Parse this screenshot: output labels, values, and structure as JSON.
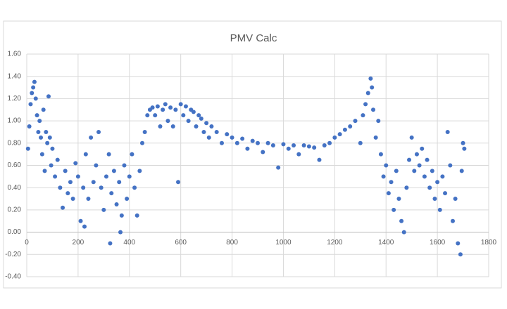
{
  "chart_data": {
    "type": "scatter",
    "title": "PMV Calc",
    "color": "#4472c4",
    "grid": true,
    "xlim": [
      0,
      1800
    ],
    "xticks": [
      0,
      200,
      400,
      600,
      800,
      1000,
      1200,
      1400,
      1600,
      1800
    ],
    "ylim": [
      -0.4,
      1.6
    ],
    "yticks": [
      {
        "value": -0.4,
        "label": "-0.40"
      },
      {
        "value": -0.2,
        "label": "-0.20"
      },
      {
        "value": 0,
        "label": "0.00"
      },
      {
        "value": 0.2,
        "label": "0.20"
      },
      {
        "value": 0.4,
        "label": "0.40"
      },
      {
        "value": 0.6,
        "label": "0.60"
      },
      {
        "value": 0.8,
        "label": "0.80"
      },
      {
        "value": 1.0,
        "label": "1.00"
      },
      {
        "value": 1.2,
        "label": "1.20"
      },
      {
        "value": 1.4,
        "label": "1.40"
      },
      {
        "value": 1.6,
        "label": "1.60"
      }
    ],
    "x": [
      5,
      10,
      15,
      20,
      25,
      30,
      35,
      40,
      45,
      50,
      55,
      60,
      65,
      70,
      75,
      80,
      85,
      90,
      95,
      100,
      110,
      120,
      130,
      140,
      150,
      160,
      170,
      180,
      190,
      200,
      210,
      220,
      225,
      230,
      240,
      250,
      260,
      270,
      280,
      290,
      300,
      310,
      320,
      325,
      330,
      340,
      350,
      360,
      365,
      370,
      380,
      390,
      400,
      410,
      420,
      430,
      440,
      450,
      460,
      470,
      480,
      490,
      500,
      510,
      520,
      530,
      540,
      550,
      560,
      570,
      580,
      590,
      600,
      610,
      620,
      630,
      640,
      650,
      660,
      670,
      680,
      690,
      700,
      710,
      720,
      740,
      760,
      780,
      800,
      820,
      840,
      860,
      880,
      900,
      920,
      940,
      960,
      980,
      1000,
      1020,
      1040,
      1060,
      1080,
      1100,
      1120,
      1140,
      1160,
      1180,
      1200,
      1220,
      1240,
      1260,
      1280,
      1300,
      1310,
      1320,
      1330,
      1340,
      1345,
      1350,
      1360,
      1370,
      1380,
      1390,
      1400,
      1410,
      1420,
      1430,
      1440,
      1450,
      1460,
      1470,
      1480,
      1490,
      1500,
      1510,
      1520,
      1530,
      1540,
      1550,
      1560,
      1570,
      1580,
      1590,
      1600,
      1610,
      1620,
      1630,
      1640,
      1650,
      1660,
      1670,
      1680,
      1690,
      1695,
      1700,
      1705
    ],
    "y": [
      0.75,
      0.95,
      1.15,
      1.25,
      1.3,
      1.35,
      1.2,
      1.05,
      0.9,
      1.0,
      0.85,
      0.7,
      1.1,
      0.55,
      0.9,
      0.8,
      1.22,
      0.85,
      0.6,
      0.75,
      0.5,
      0.65,
      0.4,
      0.22,
      0.55,
      0.35,
      0.45,
      0.3,
      0.62,
      0.5,
      0.1,
      0.4,
      0.05,
      0.7,
      0.3,
      0.85,
      0.45,
      0.6,
      0.9,
      0.4,
      0.2,
      0.5,
      0.7,
      -0.1,
      0.35,
      0.55,
      0.25,
      0.45,
      0.0,
      0.15,
      0.6,
      0.3,
      0.5,
      0.7,
      0.4,
      0.15,
      0.55,
      0.8,
      0.9,
      1.05,
      1.1,
      1.12,
      1.05,
      1.13,
      0.95,
      1.1,
      1.15,
      1.0,
      1.12,
      0.95,
      1.1,
      0.45,
      1.15,
      1.05,
      1.13,
      1.0,
      1.1,
      1.08,
      0.95,
      1.05,
      1.02,
      0.9,
      0.98,
      0.85,
      0.95,
      0.9,
      0.8,
      0.88,
      0.85,
      0.8,
      0.84,
      0.75,
      0.82,
      0.8,
      0.72,
      0.8,
      0.78,
      0.58,
      0.79,
      0.75,
      0.78,
      0.7,
      0.78,
      0.77,
      0.76,
      0.65,
      0.78,
      0.8,
      0.85,
      0.88,
      0.92,
      0.95,
      1.0,
      0.8,
      1.05,
      1.15,
      1.25,
      1.38,
      1.3,
      1.1,
      0.85,
      1.0,
      0.7,
      0.5,
      0.6,
      0.35,
      0.45,
      0.2,
      0.55,
      0.3,
      0.1,
      0.0,
      0.4,
      0.65,
      0.85,
      0.55,
      0.7,
      0.6,
      0.75,
      0.5,
      0.65,
      0.4,
      0.55,
      0.3,
      0.45,
      0.2,
      0.5,
      0.35,
      0.9,
      0.6,
      0.1,
      0.3,
      -0.1,
      -0.2,
      0.55,
      0.8,
      0.75
    ]
  }
}
